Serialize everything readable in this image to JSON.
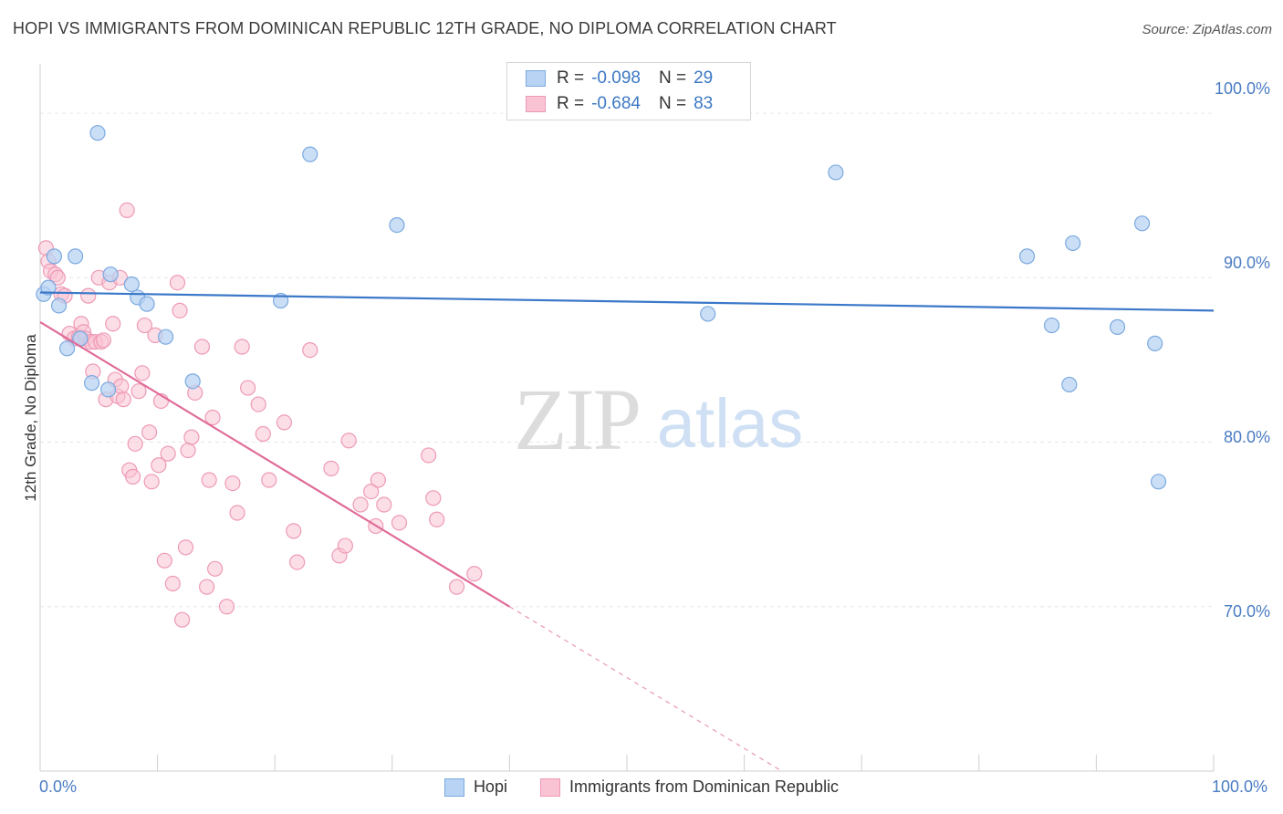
{
  "title": "HOPI VS IMMIGRANTS FROM DOMINICAN REPUBLIC 12TH GRADE, NO DIPLOMA CORRELATION CHART",
  "source": "Source: ZipAtlas.com",
  "watermark": {
    "zip": "ZIP",
    "atlas": "atlas"
  },
  "legend_top": {
    "rows": [
      {
        "r_label": "R =",
        "r_value": "-0.098",
        "n_label": "N =",
        "n_value": "29"
      },
      {
        "r_label": "R =",
        "r_value": "-0.684",
        "n_label": "N =",
        "n_value": "83"
      }
    ]
  },
  "colors": {
    "hopi_fill": "#b8d3f3",
    "hopi_stroke": "#7ba9e0",
    "hopi_line": "#3b78c9",
    "dom_fill": "#f9c3d3",
    "dom_stroke": "#ee9ab5",
    "dom_line": "#e06b98",
    "axis_text": "#4a7cc3",
    "grid": "#e6e6e6"
  },
  "chart_data": {
    "type": "scatter",
    "xlabel": "",
    "ylabel": "12th Grade, No Diploma",
    "xlim": [
      0,
      100
    ],
    "ylim": [
      60,
      103
    ],
    "y_ticks": [
      {
        "value": 100,
        "label": "100.0%"
      },
      {
        "value": 90,
        "label": "90.0%"
      },
      {
        "value": 80,
        "label": "80.0%"
      },
      {
        "value": 70,
        "label": "70.0%"
      }
    ],
    "x_tick_labels": [
      {
        "value": 0,
        "label": "0.0%"
      },
      {
        "value": 100,
        "label": "100.0%"
      }
    ],
    "legend_position": "bottom",
    "grid": true,
    "series": [
      {
        "name": "Hopi",
        "trend": {
          "x": [
            0,
            100
          ],
          "y": [
            89.1,
            88.0
          ]
        },
        "points": [
          [
            0.3,
            89.0
          ],
          [
            0.7,
            89.4
          ],
          [
            1.2,
            91.3
          ],
          [
            1.6,
            88.3
          ],
          [
            2.3,
            85.7
          ],
          [
            3.0,
            91.3
          ],
          [
            3.4,
            86.3
          ],
          [
            4.4,
            83.6
          ],
          [
            4.9,
            98.8
          ],
          [
            5.8,
            83.2
          ],
          [
            6.0,
            90.2
          ],
          [
            7.8,
            89.6
          ],
          [
            8.3,
            88.8
          ],
          [
            9.1,
            88.4
          ],
          [
            10.7,
            86.4
          ],
          [
            13.0,
            83.7
          ],
          [
            20.5,
            88.6
          ],
          [
            23.0,
            97.5
          ],
          [
            30.4,
            93.2
          ],
          [
            56.9,
            87.8
          ],
          [
            67.8,
            96.4
          ],
          [
            84.1,
            91.3
          ],
          [
            86.2,
            87.1
          ],
          [
            87.7,
            83.5
          ],
          [
            88.0,
            92.1
          ],
          [
            91.8,
            87.0
          ],
          [
            93.9,
            93.3
          ],
          [
            95.0,
            86.0
          ],
          [
            95.3,
            77.6
          ]
        ]
      },
      {
        "name": "Immigrants from Dominican Republic",
        "trend": {
          "x": [
            0,
            40
          ],
          "y": [
            87.3,
            70.0
          ]
        },
        "trend_dashed": {
          "x": [
            40,
            63.2
          ],
          "y": [
            70.0,
            60.0
          ]
        },
        "points": [
          [
            0.5,
            91.8
          ],
          [
            0.7,
            91.0
          ],
          [
            0.9,
            90.4
          ],
          [
            1.3,
            90.2
          ],
          [
            1.5,
            90.0
          ],
          [
            1.8,
            89.0
          ],
          [
            2.1,
            88.9
          ],
          [
            2.5,
            86.6
          ],
          [
            2.9,
            86.3
          ],
          [
            3.3,
            86.4
          ],
          [
            3.5,
            87.2
          ],
          [
            3.5,
            86.3
          ],
          [
            3.7,
            86.7
          ],
          [
            3.9,
            86.3
          ],
          [
            4.1,
            88.9
          ],
          [
            4.3,
            86.1
          ],
          [
            4.5,
            84.3
          ],
          [
            4.7,
            86.1
          ],
          [
            5.0,
            90.0
          ],
          [
            5.2,
            86.1
          ],
          [
            5.4,
            86.2
          ],
          [
            5.6,
            82.6
          ],
          [
            5.9,
            89.7
          ],
          [
            6.2,
            87.2
          ],
          [
            6.4,
            83.8
          ],
          [
            6.6,
            82.8
          ],
          [
            6.8,
            90.0
          ],
          [
            6.9,
            83.4
          ],
          [
            7.1,
            82.6
          ],
          [
            7.4,
            94.1
          ],
          [
            7.6,
            78.3
          ],
          [
            7.9,
            77.9
          ],
          [
            8.1,
            79.9
          ],
          [
            8.4,
            83.1
          ],
          [
            8.7,
            84.2
          ],
          [
            8.9,
            87.1
          ],
          [
            9.3,
            80.6
          ],
          [
            9.5,
            77.6
          ],
          [
            9.8,
            86.5
          ],
          [
            10.1,
            78.6
          ],
          [
            10.3,
            82.5
          ],
          [
            10.6,
            72.8
          ],
          [
            10.9,
            79.3
          ],
          [
            11.3,
            71.4
          ],
          [
            11.7,
            89.7
          ],
          [
            11.9,
            88.0
          ],
          [
            12.1,
            69.2
          ],
          [
            12.4,
            73.6
          ],
          [
            12.6,
            79.5
          ],
          [
            12.9,
            80.3
          ],
          [
            13.2,
            83.0
          ],
          [
            13.8,
            85.8
          ],
          [
            14.2,
            71.2
          ],
          [
            14.4,
            77.7
          ],
          [
            14.7,
            81.5
          ],
          [
            14.9,
            72.3
          ],
          [
            15.9,
            70.0
          ],
          [
            16.4,
            77.5
          ],
          [
            16.8,
            75.7
          ],
          [
            17.2,
            85.8
          ],
          [
            17.7,
            83.3
          ],
          [
            18.6,
            82.3
          ],
          [
            19.0,
            80.5
          ],
          [
            19.5,
            77.7
          ],
          [
            20.8,
            81.2
          ],
          [
            21.6,
            74.6
          ],
          [
            21.9,
            72.7
          ],
          [
            23.0,
            85.6
          ],
          [
            24.8,
            78.4
          ],
          [
            25.5,
            73.1
          ],
          [
            26.0,
            73.7
          ],
          [
            26.3,
            80.1
          ],
          [
            27.3,
            76.2
          ],
          [
            28.2,
            77.0
          ],
          [
            28.6,
            74.9
          ],
          [
            28.8,
            77.7
          ],
          [
            29.3,
            76.2
          ],
          [
            30.6,
            75.1
          ],
          [
            33.1,
            79.2
          ],
          [
            33.5,
            76.6
          ],
          [
            33.8,
            75.3
          ],
          [
            35.5,
            71.2
          ],
          [
            37.0,
            72.0
          ]
        ]
      }
    ]
  }
}
